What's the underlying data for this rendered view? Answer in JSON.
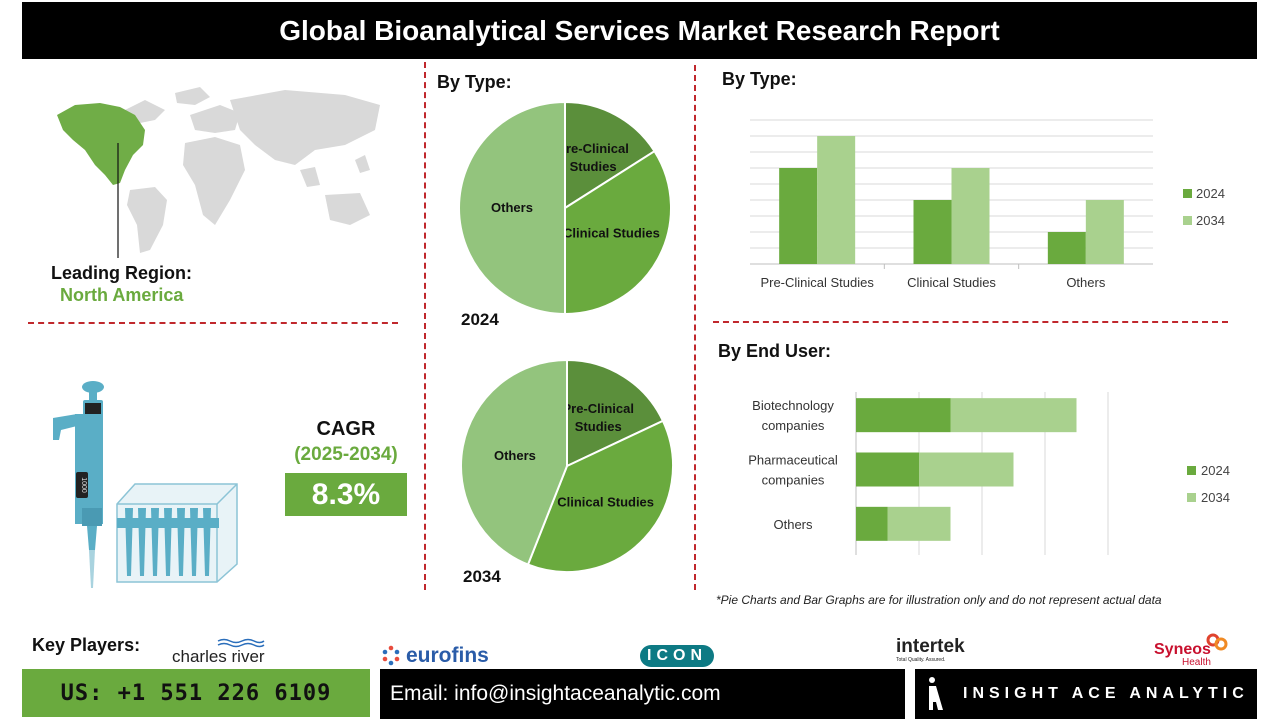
{
  "title": "Global Bioanalytical Services Market Research Report",
  "leading_region": {
    "label": "Leading Region:",
    "value": "North America"
  },
  "cagr": {
    "label": "CAGR",
    "period": "(2025-2034)",
    "value": "8.3%"
  },
  "pipette": {
    "display": "1000"
  },
  "colors": {
    "dark_green": "#5b8f3b",
    "mid_green": "#6aaa3e",
    "light_green": "#93c47d",
    "pale_green": "#a9d18e",
    "accent_red": "#c0282d",
    "map_highlight": "#70ad47",
    "map_grey": "#d9d9d9"
  },
  "pie_section": {
    "title": "By Type:",
    "pies": [
      {
        "year": "2024",
        "slices": [
          {
            "name": "Pre-Clinical Studies",
            "value": 16
          },
          {
            "name": "Clinical Studies",
            "value": 34
          },
          {
            "name": "Others",
            "value": 50
          }
        ]
      },
      {
        "year": "2034",
        "slices": [
          {
            "name": "Pre-Clinical Studies",
            "value": 18
          },
          {
            "name": "Clinical Studies",
            "value": 38
          },
          {
            "name": "Others",
            "value": 44
          }
        ]
      }
    ]
  },
  "chart_data": [
    {
      "type": "pie",
      "title": "By Type:",
      "year": "2024",
      "labels": [
        "Pre-Clinical Studies",
        "Clinical Studies",
        "Others"
      ],
      "values": [
        16,
        34,
        50
      ]
    },
    {
      "type": "pie",
      "title": "By Type:",
      "year": "2034",
      "labels": [
        "Pre-Clinical Studies",
        "Clinical Studies",
        "Others"
      ],
      "values": [
        18,
        38,
        44
      ]
    },
    {
      "type": "bar",
      "orientation": "vertical",
      "title": "By Type:",
      "categories": [
        "Pre-Clinical Studies",
        "Clinical Studies",
        "Others"
      ],
      "series": [
        {
          "name": "2024",
          "values": [
            6,
            4,
            2
          ]
        },
        {
          "name": "2034",
          "values": [
            8,
            6,
            4
          ]
        }
      ],
      "ylim": [
        0,
        9
      ],
      "grid": true,
      "legend": "right"
    },
    {
      "type": "bar",
      "orientation": "horizontal",
      "stacked": true,
      "title": "By End User:",
      "categories": [
        "Biotechnology companies",
        "Pharmaceutical companies",
        "Others"
      ],
      "series": [
        {
          "name": "2024",
          "values": [
            1.5,
            1.0,
            0.5
          ]
        },
        {
          "name": "2034",
          "values": [
            2.0,
            1.5,
            1.0
          ]
        }
      ],
      "xlim": [
        0,
        4
      ],
      "grid": true,
      "legend": "right"
    }
  ],
  "bar_type": {
    "title": "By Type:",
    "categories": [
      "Pre-Clinical Studies",
      "Clinical Studies",
      "Others"
    ],
    "legend": [
      "2024",
      "2034"
    ]
  },
  "bar_end_user": {
    "title": "By End User:",
    "categories": [
      [
        "Biotechnology",
        "companies"
      ],
      [
        "Pharmaceutical",
        "companies"
      ],
      [
        "Others"
      ]
    ],
    "legend": [
      "2024",
      "2034"
    ]
  },
  "footnote": "*Pie Charts and Bar Graphs are for illustration only and do not represent actual data",
  "key_players": {
    "label": "Key Players:",
    "logos": [
      {
        "name": "charles river",
        "icon": "wave-icon"
      },
      {
        "name": "eurofins",
        "icon": "dots-icon"
      },
      {
        "name": "ICON",
        "icon": "none"
      },
      {
        "name": "intertek",
        "tagline": "Total Quality. Assured.",
        "icon": "none"
      },
      {
        "name": "Syneos",
        "suffix": "Health",
        "icon": "swirl-icon"
      }
    ]
  },
  "contact": {
    "phone": "US: +1 551 226 6109",
    "email": "Email: info@insightaceanalytic.com",
    "brand": "INSIGHT ACE ANALYTIC"
  }
}
